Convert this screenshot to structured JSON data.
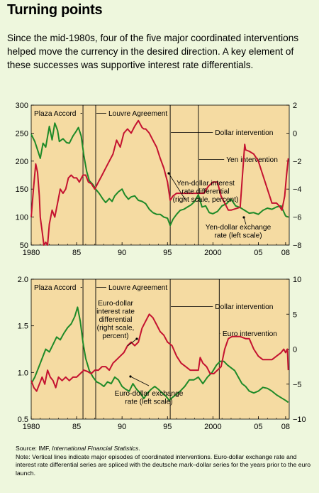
{
  "title": "Turning points",
  "subtitle": "Since the mid-1980s, four of the five major coordinated interventions helped move the currency in the desired direction. A key element of these successes was supportive interest rate differentials.",
  "source": {
    "label": "Source: IMF, ",
    "italic": "International Financial Statistics",
    "end": ".",
    "note": "Note: Vertical lines indicate major episodes of coordinated interventions. Euro-dollar exchange rate and interest rate differential series are spliced with the deutsche mark–dollar series for the years prior to the euro launch."
  },
  "colors": {
    "panel": "#f5dba2",
    "green": "#1e8a28",
    "red": "#c41230",
    "page": "#eef7dd"
  },
  "chart_data": [
    {
      "type": "line",
      "x_ticks": [
        1980,
        1985,
        1990,
        1995,
        2000,
        2005,
        2008
      ],
      "x_tick_labels": [
        "1980",
        "85",
        "90",
        "95",
        "2000",
        "05",
        "08"
      ],
      "xlim": [
        1980,
        2008.4
      ],
      "y_left": {
        "lim": [
          50,
          300
        ],
        "ticks": [
          50,
          100,
          150,
          200,
          250,
          300
        ]
      },
      "y_right": {
        "lim": [
          -8,
          2
        ],
        "ticks": [
          -8,
          -6,
          -4,
          -2,
          0,
          2
        ]
      },
      "interventions": [
        {
          "label": "Plaza Accord",
          "year": 1985.7
        },
        {
          "label": "Louvre Agreement",
          "year": 1987.1
        },
        {
          "label": "Dollar intervention",
          "year": 1995.3
        },
        {
          "label": "Yen intervention",
          "year": 1998.4
        }
      ],
      "annotations": [
        {
          "lines": [
            "Yen-dollar interest",
            "rate differential",
            "(right scale, percent)"
          ]
        },
        {
          "lines": [
            "Yen-dollar exchange",
            "rate (left scale)"
          ]
        }
      ],
      "series": [
        {
          "name": "Yen-dollar exchange rate",
          "axis": "left",
          "color": "green",
          "x": [
            1980,
            1980.4,
            1980.8,
            1981,
            1981.3,
            1981.6,
            1982,
            1982.3,
            1982.6,
            1982.9,
            1983.1,
            1983.5,
            1983.9,
            1984.2,
            1984.6,
            1984.9,
            1985.2,
            1985.5,
            1985.8,
            1986.1,
            1986.4,
            1986.8,
            1987.1,
            1987.5,
            1987.9,
            1988.2,
            1988.6,
            1988.9,
            1989.2,
            1989.6,
            1990.0,
            1990.3,
            1990.7,
            1991.0,
            1991.4,
            1991.8,
            1992.2,
            1992.6,
            1993.0,
            1993.4,
            1993.8,
            1994.2,
            1994.6,
            1995.0,
            1995.3,
            1995.6,
            1996.0,
            1996.4,
            1996.8,
            1997.2,
            1997.6,
            1998.0,
            1998.4,
            1998.8,
            1999.2,
            1999.6,
            2000.0,
            2000.5,
            2001.0,
            2001.5,
            2002.0,
            2002.5,
            2003.0,
            2003.5,
            2004.0,
            2004.5,
            2005.0,
            2005.5,
            2006.0,
            2006.5,
            2007.0,
            2007.5,
            2008.0,
            2008.3
          ],
          "y": [
            248,
            235,
            215,
            205,
            232,
            225,
            262,
            238,
            268,
            255,
            235,
            240,
            233,
            232,
            245,
            252,
            260,
            245,
            210,
            182,
            165,
            158,
            150,
            142,
            132,
            126,
            133,
            128,
            138,
            145,
            150,
            140,
            132,
            136,
            138,
            130,
            128,
            124,
            114,
            108,
            105,
            105,
            100,
            98,
            85,
            96,
            105,
            112,
            114,
            118,
            122,
            128,
            140,
            118,
            120,
            108,
            106,
            110,
            120,
            124,
            132,
            120,
            117,
            112,
            107,
            108,
            105,
            112,
            116,
            114,
            118,
            120,
            102,
            100
          ]
        },
        {
          "name": "Yen-dollar interest rate differential",
          "axis": "right",
          "color": "red",
          "x": [
            1980,
            1980.25,
            1980.5,
            1980.7,
            1980.9,
            1981.0,
            1981.2,
            1981.4,
            1981.6,
            1981.8,
            1982.0,
            1982.3,
            1982.6,
            1982.9,
            1983.2,
            1983.5,
            1983.8,
            1984.1,
            1984.4,
            1984.7,
            1985.0,
            1985.3,
            1985.7,
            1986.0,
            1986.3,
            1986.6,
            1987.0,
            1987.4,
            1987.8,
            1988.2,
            1988.6,
            1989.0,
            1989.4,
            1989.8,
            1990.2,
            1990.6,
            1991.0,
            1991.4,
            1991.8,
            1992.2,
            1992.4,
            1992.6,
            1993.0,
            1993.4,
            1993.8,
            1994.2,
            1994.6,
            1995.0,
            1995.3,
            1995.6,
            1996.0,
            1996.5,
            1997.0,
            1997.5,
            1998.0,
            1998.5,
            1999.0,
            1999.5,
            2000.0,
            2000.5,
            2000.9,
            2001.3,
            2001.7,
            2002.0,
            2003.0,
            2003.5,
            2003.6,
            2004.0,
            2004.5,
            2005.0,
            2005.5,
            2006.0,
            2006.5,
            2007.0,
            2007.3,
            2007.6,
            2007.9,
            2008.1,
            2008.3
          ],
          "y": [
            -6.0,
            -4.0,
            -2.2,
            -2.8,
            -4.5,
            -6.0,
            -7.0,
            -8.0,
            -7.8,
            -8.0,
            -6.5,
            -5.5,
            -6.0,
            -5.0,
            -4.0,
            -4.3,
            -4.0,
            -3.2,
            -3.0,
            -3.2,
            -3.2,
            -3.5,
            -3.0,
            -3.0,
            -3.5,
            -3.6,
            -4.0,
            -3.5,
            -3.0,
            -2.5,
            -2.0,
            -1.5,
            -0.5,
            -1.0,
            0.0,
            0.3,
            0.0,
            0.5,
            0.9,
            0.4,
            0.3,
            0.3,
            0.0,
            -0.5,
            -1.0,
            -1.8,
            -2.5,
            -3.5,
            -4.8,
            -4.5,
            -4.3,
            -4.3,
            -4.3,
            -4.3,
            -4.3,
            -4.3,
            -4.3,
            -3.8,
            -3.5,
            -3.5,
            -4.5,
            -5.0,
            -5.5,
            -5.5,
            -5.3,
            -0.8,
            -1.2,
            -1.3,
            -1.5,
            -2.0,
            -3.0,
            -4.0,
            -5.0,
            -5.0,
            -5.2,
            -5.5,
            -4.5,
            -3.0,
            -1.8
          ]
        }
      ]
    },
    {
      "type": "line",
      "x_ticks": [
        1980,
        1985,
        1990,
        1995,
        2000,
        2005,
        2008
      ],
      "x_tick_labels": [
        "1980",
        "85",
        "90",
        "95",
        "2000",
        "05",
        "08"
      ],
      "xlim": [
        1980,
        2008.4
      ],
      "y_left": {
        "lim": [
          0.5,
          2.0
        ],
        "tick_labels": [
          "0.5",
          "1.0",
          "1.5",
          "2.0"
        ],
        "ticks": [
          0.5,
          1.0,
          1.5,
          2.0
        ]
      },
      "y_right": {
        "lim": [
          -10,
          10
        ],
        "ticks": [
          -10,
          -5,
          0,
          5,
          10
        ]
      },
      "interventions": [
        {
          "label": "Plaza Accord",
          "year": 1985.7
        },
        {
          "label": "Louvre Agreement",
          "year": 1987.1
        },
        {
          "label": "Dollar intervention",
          "year": 1995.3
        },
        {
          "label": "Euro intervention",
          "year": 2000.7
        }
      ],
      "annotations": [
        {
          "lines": [
            "Euro-dollar",
            "interest rate",
            "differential",
            "(right scale,",
            "percent)"
          ]
        },
        {
          "lines": [
            "Euro-dollar exchange",
            "rate (left scale)"
          ]
        }
      ],
      "series": [
        {
          "name": "Euro-dollar exchange rate",
          "axis": "left",
          "color": "green",
          "x": [
            1980,
            1980.4,
            1980.8,
            1981.2,
            1981.6,
            1982.0,
            1982.4,
            1982.8,
            1983.2,
            1983.6,
            1984.0,
            1984.4,
            1984.8,
            1985.1,
            1985.4,
            1985.7,
            1986.0,
            1986.4,
            1986.8,
            1987.2,
            1987.6,
            1988.0,
            1988.4,
            1988.8,
            1989.2,
            1989.6,
            1990.0,
            1990.4,
            1990.8,
            1991.2,
            1991.6,
            1992.0,
            1992.4,
            1992.8,
            1993.2,
            1993.6,
            1994.0,
            1994.4,
            1994.8,
            1995.2,
            1995.5,
            1995.9,
            1996.4,
            1996.9,
            1997.4,
            1997.9,
            1998.4,
            1998.9,
            1999.4,
            1999.9,
            2000.4,
            2000.8,
            2001.2,
            2001.6,
            2002.0,
            2002.4,
            2002.8,
            2003.2,
            2003.6,
            2004.0,
            2004.5,
            2005.0,
            2005.5,
            2006.0,
            2006.5,
            2007.0,
            2007.5,
            2008.0,
            2008.3
          ],
          "y": [
            0.88,
            0.95,
            1.05,
            1.15,
            1.25,
            1.22,
            1.3,
            1.38,
            1.35,
            1.42,
            1.48,
            1.52,
            1.6,
            1.7,
            1.55,
            1.32,
            1.15,
            1.02,
            0.95,
            0.9,
            0.88,
            0.85,
            0.9,
            0.88,
            0.95,
            0.92,
            0.85,
            0.82,
            0.8,
            0.88,
            0.82,
            0.78,
            0.72,
            0.78,
            0.82,
            0.85,
            0.82,
            0.78,
            0.75,
            0.7,
            0.73,
            0.76,
            0.8,
            0.85,
            0.92,
            0.92,
            0.95,
            0.88,
            0.95,
            1.0,
            1.08,
            1.12,
            1.12,
            1.08,
            1.05,
            1.02,
            0.95,
            0.88,
            0.85,
            0.8,
            0.78,
            0.8,
            0.84,
            0.83,
            0.8,
            0.76,
            0.73,
            0.7,
            0.68
          ]
        },
        {
          "name": "Euro-dollar interest rate differential",
          "axis": "right",
          "color": "red",
          "x": [
            1980,
            1980.3,
            1980.6,
            1980.9,
            1981.2,
            1981.5,
            1981.8,
            1982.1,
            1982.4,
            1982.7,
            1983.0,
            1983.4,
            1983.8,
            1984.2,
            1984.6,
            1985.0,
            1985.4,
            1985.8,
            1986.2,
            1986.6,
            1987.0,
            1987.4,
            1987.8,
            1988.2,
            1988.6,
            1989.0,
            1989.4,
            1989.8,
            1990.2,
            1990.6,
            1991.0,
            1991.4,
            1991.8,
            1992.2,
            1992.6,
            1993.0,
            1993.4,
            1993.8,
            1994.2,
            1994.6,
            1995.0,
            1995.5,
            1996.0,
            1996.5,
            1997.0,
            1997.5,
            1998.0,
            1998.4,
            1998.6,
            1998.9,
            1999.3,
            1999.7,
            2000.1,
            2000.5,
            2000.9,
            2001.3,
            2001.7,
            2002.1,
            2002.5,
            2003.0,
            2003.6,
            2004.0,
            2004.5,
            2005.0,
            2005.5,
            2006.0,
            2006.5,
            2007.0,
            2007.5,
            2007.8,
            2008.0,
            2008.2,
            2008.3
          ],
          "y": [
            -4.5,
            -5.5,
            -6.0,
            -5.0,
            -4.0,
            -5.0,
            -3.0,
            -4.0,
            -4.5,
            -5.5,
            -4.0,
            -4.5,
            -4.0,
            -4.5,
            -4.0,
            -4.0,
            -3.5,
            -3.0,
            -3.2,
            -3.5,
            -3.0,
            -3.0,
            -2.5,
            -2.5,
            -3.0,
            -2.0,
            -1.5,
            -1.0,
            -0.5,
            0.5,
            1.0,
            0.5,
            1.0,
            3.0,
            4.0,
            5.0,
            4.5,
            3.5,
            2.5,
            2.0,
            1.0,
            0.5,
            -1.0,
            -2.0,
            -2.5,
            -3.0,
            -3.0,
            -3.0,
            -1.2,
            -2.0,
            -2.5,
            -3.5,
            -3.5,
            -3.0,
            -2.5,
            0.0,
            1.5,
            1.8,
            1.8,
            1.8,
            1.5,
            1.5,
            0.0,
            -1.0,
            -1.5,
            -1.5,
            -1.5,
            -1.0,
            -0.5,
            0.0,
            -0.5,
            0.0,
            -3.0
          ]
        }
      ]
    }
  ]
}
